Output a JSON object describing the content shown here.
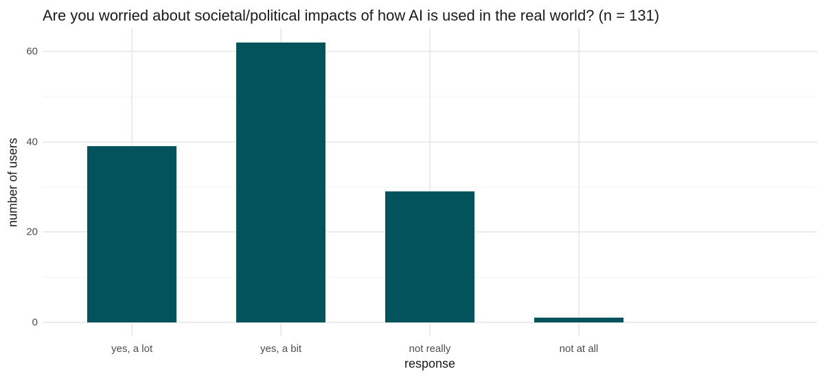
{
  "chart_data": {
    "type": "bar",
    "title": "Are you worried about societal/political impacts of how AI is used in the real world? (n = 131)",
    "categories": [
      "yes, a lot",
      "yes, a bit",
      "not really",
      "not at all"
    ],
    "values": [
      39,
      62,
      29,
      1
    ],
    "xlabel": "response",
    "ylabel": "number of users",
    "ylim": [
      0,
      62
    ],
    "y_major_ticks": [
      0,
      20,
      40,
      60
    ],
    "y_minor_ticks": [
      10,
      30,
      50
    ],
    "grid": "major-and-minor-horizontal, major-vertical-at-category-centers",
    "legend_position": "none",
    "bar_relative_width": 0.6,
    "colors": {
      "bar_fill": "#03535d",
      "grid_major": "#ebebeb",
      "grid_minor": "#f4f4f4",
      "title_text": "#1a1a1a",
      "axis_title_text": "#1a1a1a",
      "tick_label_text": "#4d4d4d",
      "background": "#ffffff"
    }
  }
}
